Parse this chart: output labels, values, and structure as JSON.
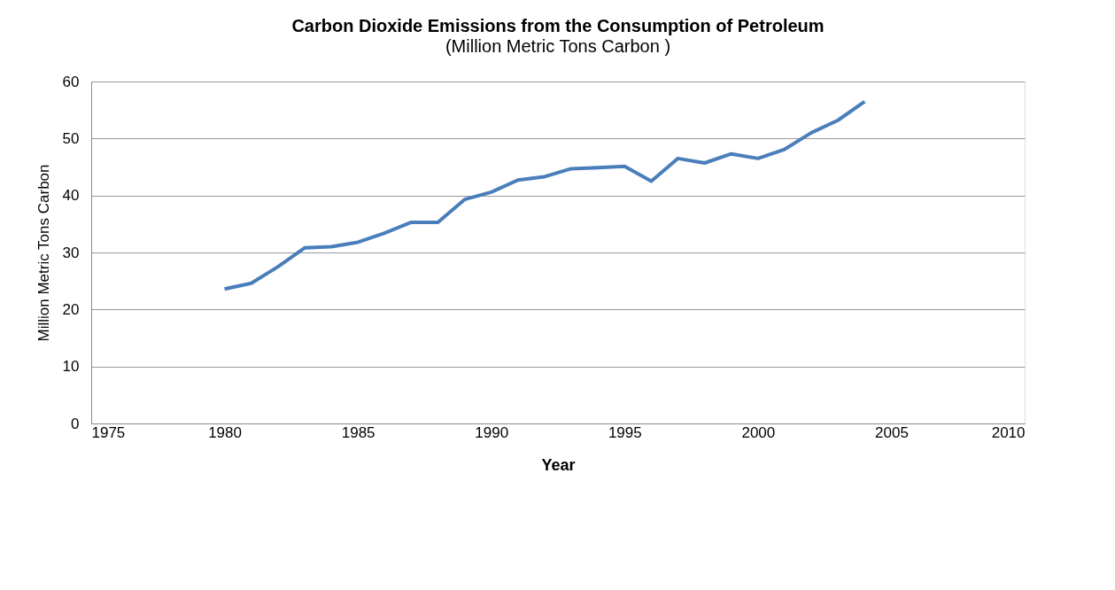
{
  "chart_data": {
    "type": "line",
    "title": "Carbon Dioxide Emissions from the Consumption of Petroleum",
    "subtitle": "(Million Metric Tons Carbon )",
    "xlabel": "Year",
    "ylabel": "Million Metric Tons Carbon",
    "x": [
      1980,
      1981,
      1982,
      1983,
      1984,
      1985,
      1986,
      1987,
      1988,
      1989,
      1990,
      1991,
      1992,
      1993,
      1994,
      1995,
      1996,
      1997,
      1998,
      1999,
      2000,
      2001,
      2002,
      2003,
      2004
    ],
    "series": [
      {
        "color": "#4a7ebb",
        "values": [
          23.6,
          24.6,
          27.5,
          30.8,
          31.0,
          31.8,
          33.4,
          35.3,
          35.3,
          39.3,
          40.6,
          42.7,
          43.3,
          44.7,
          44.9,
          45.1,
          42.5,
          46.5,
          45.7,
          47.3,
          46.5,
          48.1,
          51.0,
          53.2,
          56.5
        ]
      }
    ],
    "xlim": [
      1975,
      2010
    ],
    "xticks": [
      1975,
      1980,
      1985,
      1990,
      1995,
      2000,
      2005,
      2010
    ],
    "ylim": [
      0,
      60
    ],
    "yticks": [
      0,
      10,
      20,
      30,
      40,
      50,
      60
    ],
    "grid": "y",
    "legend": false,
    "marker": "none",
    "line_style": "solid"
  }
}
